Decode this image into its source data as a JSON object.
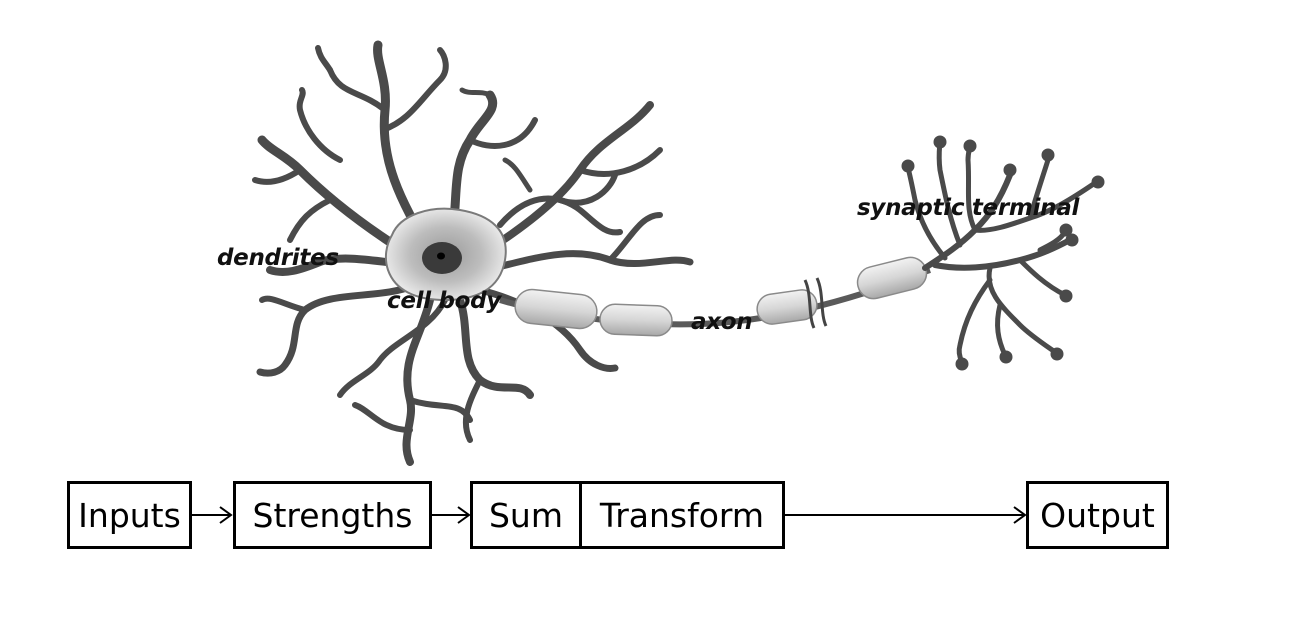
{
  "neuron": {
    "labels": {
      "dendrites": "dendrites",
      "cell_body": "cell body",
      "axon": "axon",
      "synaptic_terminal": "synaptic terminal"
    }
  },
  "flow": {
    "inputs": "Inputs",
    "strengths": "Strengths",
    "sum": "Sum",
    "transform": "Transform",
    "output": "Output"
  },
  "colors": {
    "neuron_stroke": "#4a4a4a",
    "neuron_light": "#d9d9d9",
    "line": "#000000",
    "background": "#ffffff"
  }
}
